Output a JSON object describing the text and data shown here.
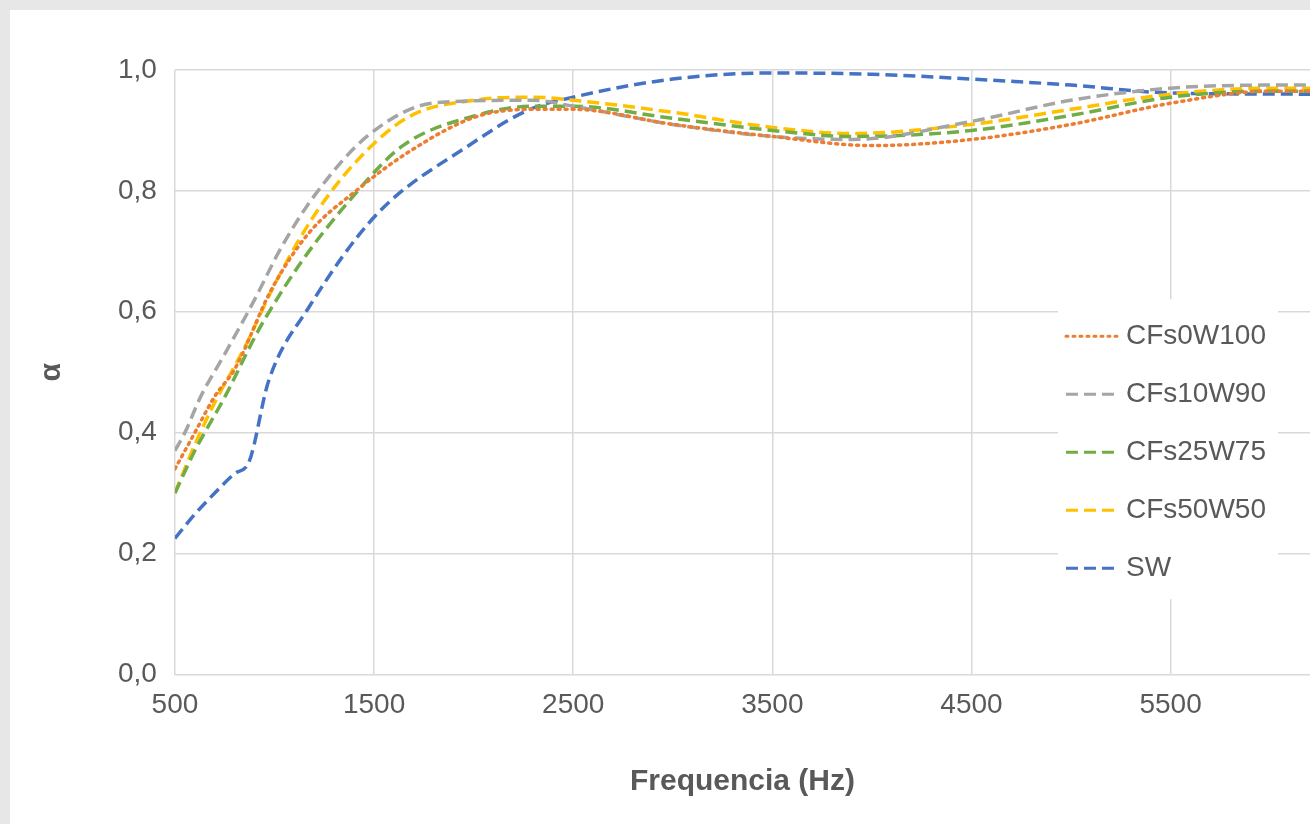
{
  "chart_data": {
    "type": "line",
    "xlabel": "Frequencia (Hz)",
    "ylabel": "α",
    "xlim": [
      500,
      6200
    ],
    "xticks": [
      500,
      1500,
      2500,
      3500,
      4500,
      5500
    ],
    "ylim": [
      0,
      1
    ],
    "yticks": [
      {
        "value": 0,
        "label": "0,0"
      },
      {
        "value": 0.2,
        "label": "0,2"
      },
      {
        "value": 0.4,
        "label": "0,4"
      },
      {
        "value": 0.6,
        "label": "0,6"
      },
      {
        "value": 0.8,
        "label": "0,8"
      },
      {
        "value": 1,
        "label": "1,0"
      }
    ],
    "grid": true,
    "legend": "right",
    "marker": "none",
    "series": [
      {
        "name": "CFs0W100",
        "color": "#ed7d31",
        "line_style": "dotted",
        "x": [
          500,
          600,
          700,
          800,
          985,
          1172,
          1409,
          1677,
          2015,
          2300,
          2500,
          3000,
          3500,
          4000,
          4500,
          5000,
          5500,
          6000,
          6200
        ],
        "values": [
          0.34,
          0.4,
          0.46,
          0.505,
          0.637,
          0.73,
          0.8,
          0.865,
          0.923,
          0.935,
          0.935,
          0.91,
          0.89,
          0.875,
          0.885,
          0.91,
          0.945,
          0.965,
          0.965
        ]
      },
      {
        "name": "CFs10W90",
        "color": "#a5a5a5",
        "line_style": "dashed",
        "x": [
          500,
          550,
          630,
          750,
          900,
          1035,
          1207,
          1475,
          1813,
          2300,
          2500,
          3000,
          3500,
          3900,
          4500,
          5000,
          5500,
          6000,
          6200
        ],
        "values": [
          0.37,
          0.4,
          0.46,
          0.53,
          0.62,
          0.707,
          0.795,
          0.893,
          0.946,
          0.95,
          0.94,
          0.91,
          0.89,
          0.885,
          0.915,
          0.95,
          0.97,
          0.975,
          0.975
        ]
      },
      {
        "name": "CFs25W75",
        "color": "#70ad47",
        "line_style": "dashed",
        "x": [
          500,
          600,
          752,
          904,
          955,
          1136,
          1374,
          1641,
          2015,
          2300,
          2500,
          3000,
          3500,
          3900,
          4500,
          5000,
          5500,
          6000,
          6200
        ],
        "values": [
          0.3,
          0.37,
          0.46,
          0.56,
          0.59,
          0.683,
          0.783,
          0.874,
          0.925,
          0.94,
          0.94,
          0.92,
          0.9,
          0.89,
          0.9,
          0.925,
          0.955,
          0.965,
          0.965
        ]
      },
      {
        "name": "CFs50W50",
        "color": "#ffc000",
        "line_style": "dashed",
        "x": [
          500,
          600,
          700,
          800,
          853,
          1005,
          1187,
          1409,
          1677,
          2000,
          2300,
          2500,
          3000,
          3500,
          3900,
          4500,
          5000,
          5500,
          6000,
          6200
        ],
        "values": [
          0.3,
          0.38,
          0.45,
          0.51,
          0.543,
          0.648,
          0.753,
          0.848,
          0.923,
          0.95,
          0.955,
          0.95,
          0.93,
          0.905,
          0.895,
          0.91,
          0.935,
          0.96,
          0.97,
          0.97
        ]
      },
      {
        "name": "SW",
        "color": "#4472c4",
        "line_style": "dashed",
        "x": [
          500,
          600,
          700,
          803,
          870,
          970,
          1172,
          1510,
          1980,
          2283,
          2500,
          3000,
          3500,
          4000,
          4500,
          5000,
          5500,
          6200
        ],
        "values": [
          0.225,
          0.265,
          0.3,
          0.333,
          0.35,
          0.485,
          0.607,
          0.76,
          0.876,
          0.935,
          0.955,
          0.985,
          0.995,
          0.993,
          0.985,
          0.975,
          0.962,
          0.96
        ]
      }
    ]
  }
}
